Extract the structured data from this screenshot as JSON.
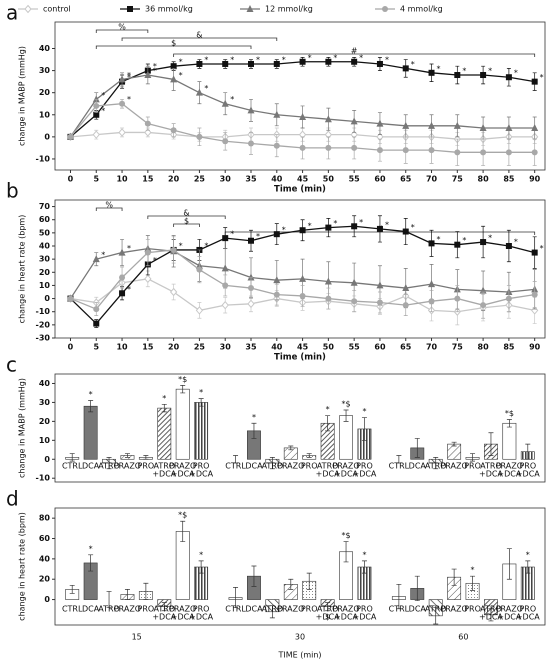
{
  "chart_data": [
    {
      "type": "line",
      "panel_label": "a",
      "legend": true,
      "sig_label": "*",
      "x": [
        0,
        5,
        10,
        15,
        20,
        25,
        30,
        35,
        40,
        45,
        50,
        55,
        60,
        65,
        70,
        75,
        80,
        85,
        90
      ],
      "xlim": [
        -3,
        92
      ],
      "ylim": [
        -15,
        52
      ],
      "xticks": [
        0,
        5,
        10,
        15,
        20,
        25,
        30,
        35,
        40,
        45,
        50,
        55,
        60,
        65,
        70,
        75,
        80,
        85,
        90
      ],
      "yticks": [
        -10,
        0,
        10,
        20,
        30,
        40
      ],
      "xlabel": "Time (min)",
      "ylabel": "change in MABP (mmHg)",
      "brackets": [
        {
          "label": "%",
          "x": [
            5,
            15
          ]
        },
        {
          "label": "&",
          "x": [
            10,
            40
          ]
        },
        {
          "label": "$",
          "x": [
            5,
            35
          ]
        },
        {
          "label": "#",
          "x": [
            20,
            90
          ]
        }
      ],
      "series": [
        {
          "name": "control",
          "color": "#c8c8c8",
          "marker": "diamond",
          "values": [
            0,
            1,
            2,
            2,
            1,
            0,
            0,
            1,
            1,
            1,
            1,
            1,
            0,
            0,
            0,
            -1,
            -1,
            0,
            0
          ],
          "errors": [
            0,
            2,
            2,
            2,
            2,
            2,
            3,
            3,
            3,
            3,
            3,
            3,
            3,
            3,
            3,
            3,
            3,
            3,
            3
          ],
          "sig_x": []
        },
        {
          "name": "36 mmol/kg",
          "color": "#111111",
          "marker": "square",
          "values": [
            0,
            10,
            25,
            30,
            32,
            33,
            33,
            33,
            33,
            34,
            34,
            34,
            33,
            31,
            29,
            28,
            28,
            27,
            25
          ],
          "errors": [
            0,
            2,
            3,
            3,
            2,
            2,
            2,
            2,
            2,
            2,
            2,
            2,
            3,
            4,
            4,
            4,
            4,
            4,
            4
          ],
          "sig_x": [
            5,
            10,
            15,
            20,
            25,
            30,
            35,
            40,
            45,
            50,
            55,
            60,
            65,
            70,
            75,
            80,
            85,
            90
          ]
        },
        {
          "name": "12 mmol/kg",
          "color": "#777777",
          "marker": "triangle",
          "values": [
            0,
            17,
            26,
            28,
            26,
            20,
            15,
            12,
            10,
            9,
            8,
            7,
            6,
            5,
            5,
            5,
            4,
            4,
            4
          ],
          "errors": [
            0,
            3,
            3,
            4,
            5,
            5,
            5,
            5,
            5,
            5,
            5,
            5,
            5,
            5,
            5,
            5,
            5,
            5,
            5
          ],
          "sig_x": [
            5,
            10,
            15,
            20,
            25,
            30
          ]
        },
        {
          "name": "4 mmol/kg",
          "color": "#a8a8a8",
          "marker": "circle",
          "values": [
            0,
            14,
            15,
            6,
            3,
            0,
            -2,
            -3,
            -4,
            -5,
            -5,
            -5,
            -6,
            -6,
            -6,
            -7,
            -7,
            -7,
            -7
          ],
          "errors": [
            0,
            3,
            2,
            3,
            3,
            4,
            4,
            5,
            5,
            5,
            5,
            5,
            5,
            6,
            6,
            6,
            6,
            6,
            6
          ],
          "sig_x": [
            10
          ]
        }
      ]
    },
    {
      "type": "line",
      "panel_label": "b",
      "legend": false,
      "sig_label": "*",
      "x": [
        0,
        5,
        10,
        15,
        20,
        25,
        30,
        35,
        40,
        45,
        50,
        55,
        60,
        65,
        70,
        75,
        80,
        85,
        90
      ],
      "xlim": [
        -3,
        92
      ],
      "ylim": [
        -30,
        75
      ],
      "xticks": [
        0,
        5,
        10,
        15,
        20,
        25,
        30,
        35,
        40,
        45,
        50,
        55,
        60,
        65,
        70,
        75,
        80,
        85,
        90
      ],
      "yticks": [
        -30,
        -20,
        -10,
        0,
        10,
        20,
        30,
        40,
        50,
        60,
        70
      ],
      "xlabel": "Time (min)",
      "ylabel": "change in heart rate (bpm)",
      "brackets": [
        {
          "label": "%",
          "x": [
            5,
            10
          ]
        },
        {
          "label": "&",
          "x": [
            15,
            30
          ]
        },
        {
          "label": "$",
          "x": [
            20,
            25
          ]
        },
        {
          "label": "#",
          "x": [
            30,
            90
          ]
        }
      ],
      "series": [
        {
          "name": "control",
          "color": "#c8c8c8",
          "marker": "diamond",
          "values": [
            0,
            -3,
            12,
            15,
            5,
            -9,
            -5,
            -4,
            0,
            -3,
            -2,
            -4,
            -6,
            2,
            -9,
            -10,
            -7,
            -5,
            -9
          ],
          "errors": [
            0,
            4,
            6,
            6,
            6,
            6,
            6,
            6,
            6,
            6,
            6,
            6,
            6,
            6,
            8,
            10,
            10,
            10,
            10
          ],
          "sig_x": []
        },
        {
          "name": "36 mmol/kg",
          "color": "#111111",
          "marker": "square",
          "values": [
            0,
            -19,
            4,
            26,
            37,
            37,
            46,
            44,
            49,
            52,
            54,
            55,
            53,
            51,
            42,
            41,
            43,
            40,
            35
          ],
          "errors": [
            0,
            3,
            5,
            8,
            8,
            8,
            8,
            8,
            8,
            8,
            7,
            8,
            10,
            10,
            10,
            10,
            12,
            12,
            12
          ],
          "sig_x": [
            10,
            15,
            20,
            25,
            30,
            35,
            40,
            45,
            50,
            55,
            60,
            65,
            70,
            75,
            80,
            85,
            90
          ]
        },
        {
          "name": "12 mmol/kg",
          "color": "#777777",
          "marker": "triangle",
          "values": [
            0,
            30,
            35,
            38,
            36,
            25,
            23,
            16,
            14,
            15,
            13,
            12,
            10,
            8,
            11,
            7,
            6,
            5,
            7
          ],
          "errors": [
            0,
            5,
            10,
            10,
            12,
            12,
            15,
            15,
            15,
            15,
            15,
            15,
            15,
            15,
            15,
            15,
            15,
            15,
            15
          ],
          "sig_x": [
            5,
            10
          ]
        },
        {
          "name": "4 mmol/kg",
          "color": "#a8a8a8",
          "marker": "circle",
          "values": [
            0,
            -8,
            16,
            35,
            37,
            22,
            10,
            8,
            3,
            2,
            0,
            -2,
            -3,
            -5,
            -2,
            0,
            -5,
            0,
            3
          ],
          "errors": [
            0,
            5,
            8,
            10,
            10,
            10,
            8,
            8,
            8,
            8,
            8,
            8,
            8,
            8,
            8,
            10,
            10,
            10,
            10
          ],
          "sig_x": []
        }
      ]
    },
    {
      "type": "bar",
      "panel_label": "c",
      "categories": [
        [
          "CTRL"
        ],
        [
          "DCA"
        ],
        [
          "ATRO"
        ],
        [
          "PRAZO"
        ],
        [
          "PRO"
        ],
        [
          "ATRO",
          "+DCA"
        ],
        [
          "PRAZO",
          "+DCA"
        ],
        [
          "PRO",
          "+DCA"
        ]
      ],
      "ylim": [
        -12,
        45
      ],
      "yticks": [
        -10,
        0,
        10,
        20,
        30,
        40
      ],
      "ylabel": "change in MABP (mmHg)",
      "series": [
        {
          "values": [
            1,
            28,
            -2,
            2,
            1,
            27,
            37,
            30
          ],
          "errors": [
            2,
            3,
            3,
            1,
            1,
            2,
            2,
            2
          ],
          "sig": [
            null,
            "*",
            null,
            null,
            null,
            "*",
            "*$",
            "*"
          ]
        },
        {
          "values": [
            0,
            15,
            -2,
            6,
            2,
            19,
            23,
            16
          ],
          "errors": [
            2,
            4,
            3,
            1,
            1,
            4,
            3,
            6
          ],
          "sig": [
            null,
            "*",
            null,
            null,
            null,
            "*",
            "*$",
            "*"
          ]
        },
        {
          "values": [
            0,
            6,
            -2,
            8,
            1,
            8,
            19,
            4
          ],
          "errors": [
            2,
            5,
            3,
            1,
            2,
            6,
            2,
            4
          ],
          "sig": [
            null,
            null,
            null,
            null,
            null,
            null,
            "*$",
            null
          ]
        }
      ]
    },
    {
      "type": "bar",
      "panel_label": "d",
      "categories": [
        [
          "CTRL"
        ],
        [
          "DCA"
        ],
        [
          "ATRO"
        ],
        [
          "PRAZO"
        ],
        [
          "PRO"
        ],
        [
          "ATRO",
          "+DCA"
        ],
        [
          "PRAZO",
          "+DCA"
        ],
        [
          "PRO",
          "+DCA"
        ]
      ],
      "ylim": [
        -25,
        90
      ],
      "yticks": [
        0,
        20,
        40,
        60,
        80
      ],
      "ylabel": "change in heart rate (bpm)",
      "xlabel": "TIME (min)",
      "series": [
        {
          "name": "15",
          "values": [
            10,
            36,
            0,
            5,
            8,
            -7,
            67,
            32
          ],
          "errors": [
            4,
            8,
            8,
            5,
            8,
            4,
            10,
            6
          ],
          "sig": [
            null,
            "*",
            null,
            null,
            null,
            null,
            "*$",
            "*"
          ]
        },
        {
          "name": "30",
          "values": [
            2,
            23,
            -12,
            15,
            18,
            -7,
            47,
            32
          ],
          "errors": [
            10,
            10,
            6,
            5,
            8,
            4,
            10,
            6
          ],
          "sig": [
            null,
            null,
            null,
            null,
            null,
            "$",
            "*$",
            "*"
          ]
        },
        {
          "name": "60",
          "values": [
            3,
            11,
            -16,
            22,
            16,
            -15,
            35,
            32
          ],
          "errors": [
            12,
            12,
            8,
            8,
            7,
            6,
            15,
            6
          ],
          "sig": [
            null,
            null,
            null,
            null,
            "*",
            null,
            null,
            "*"
          ]
        }
      ]
    }
  ]
}
